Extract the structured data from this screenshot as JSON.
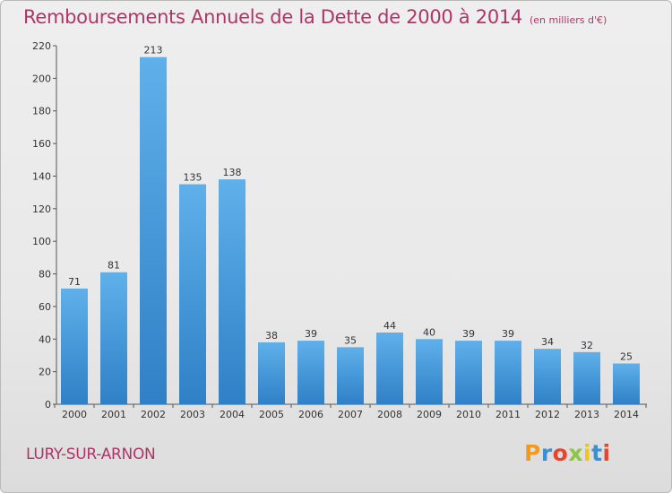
{
  "title": "Remboursements Annuels de la Dette de 2000 à 2014",
  "unit": "(en milliers d'€)",
  "commune": "LURY-SUR-ARNON",
  "logo": {
    "letters": [
      "P",
      "r",
      "o",
      "x",
      "i",
      "t",
      "i"
    ],
    "colors": [
      "#f39a1e",
      "#3a8fd6",
      "#e8452c",
      "#8dc63f",
      "#f0c419",
      "#3a8fd6",
      "#e8452c"
    ]
  },
  "colors": {
    "title": "#b03468",
    "bar_top": "#5fb0ea",
    "bar_bottom": "#2f80c6"
  },
  "chart_data": {
    "type": "bar",
    "categories": [
      "2000",
      "2001",
      "2002",
      "2003",
      "2004",
      "2005",
      "2006",
      "2007",
      "2008",
      "2009",
      "2010",
      "2011",
      "2012",
      "2013",
      "2014"
    ],
    "values": [
      71,
      81,
      213,
      135,
      138,
      38,
      39,
      35,
      44,
      40,
      39,
      39,
      34,
      32,
      25
    ],
    "ylim": [
      0,
      220
    ],
    "yticks": [
      0,
      20,
      40,
      60,
      80,
      100,
      120,
      140,
      160,
      180,
      200,
      220
    ],
    "grid": false
  }
}
